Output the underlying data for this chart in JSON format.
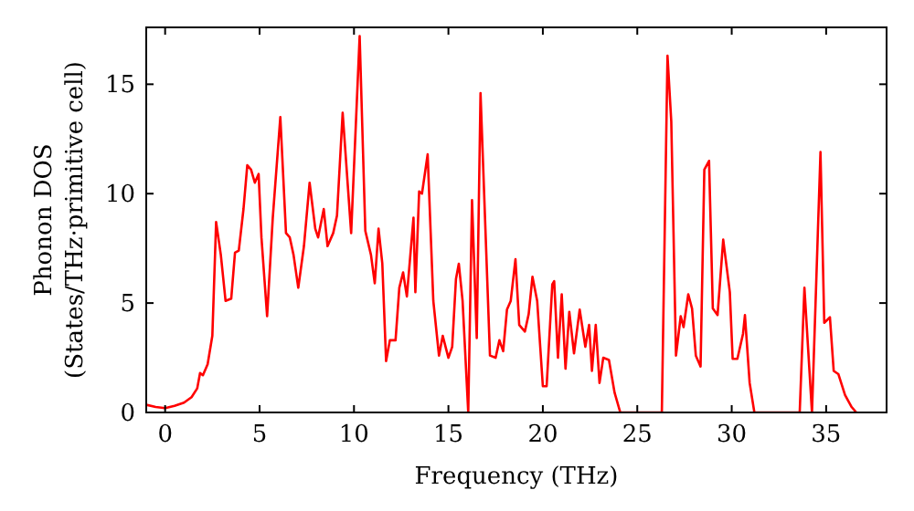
{
  "chart_data": {
    "type": "line",
    "xlabel": "Frequency (THz)",
    "ylabel": "Phonon DOS\n(States/THz·primitive cell)",
    "xlim": [
      -1,
      38.2
    ],
    "ylim": [
      0,
      17.6
    ],
    "xticks": [
      0,
      5,
      10,
      15,
      20,
      25,
      30,
      35
    ],
    "yticks": [
      0,
      5,
      10,
      15
    ],
    "grid": false,
    "marker": "none",
    "line_style": "solid",
    "series": [
      {
        "color": "#ff0000",
        "x": [
          -1,
          -0.5,
          0,
          0.5,
          1,
          1.4,
          1.7,
          1.85,
          2,
          2.25,
          2.5,
          2.7,
          2.95,
          3.2,
          3.5,
          3.7,
          3.9,
          4.15,
          4.35,
          4.55,
          4.75,
          4.95,
          5.1,
          5.4,
          5.7,
          6.1,
          6.4,
          6.6,
          6.8,
          7.05,
          7.35,
          7.65,
          7.95,
          8.1,
          8.4,
          8.6,
          8.9,
          9.1,
          9.4,
          9.85,
          10.3,
          10.6,
          10.9,
          11.1,
          11.3,
          11.5,
          11.7,
          11.9,
          12.2,
          12.4,
          12.6,
          12.8,
          13.15,
          13.25,
          13.45,
          13.6,
          13.9,
          14.2,
          14.5,
          14.7,
          15,
          15.2,
          15.4,
          15.55,
          15.75,
          16.05,
          16.25,
          16.5,
          16.7,
          17.2,
          17.5,
          17.7,
          17.9,
          18.1,
          18.3,
          18.55,
          18.75,
          19.05,
          19.25,
          19.45,
          19.7,
          20,
          20.2,
          20.5,
          20.6,
          20.8,
          21,
          21.2,
          21.4,
          21.65,
          21.95,
          22.25,
          22.45,
          22.6,
          22.8,
          23,
          23.2,
          23.5,
          23.8,
          24.1,
          26.3,
          26.6,
          26.8,
          27.05,
          27.3,
          27.45,
          27.7,
          27.9,
          28.1,
          28.35,
          28.55,
          28.8,
          29,
          29.25,
          29.55,
          29.9,
          30.05,
          30.3,
          30.6,
          30.7,
          30.95,
          31.2,
          33.6,
          33.85,
          34.25,
          34.7,
          34.9,
          35.2,
          35.4,
          35.65,
          36,
          36.35,
          36.6
        ],
        "values": [
          0.35,
          0.25,
          0.2,
          0.3,
          0.45,
          0.7,
          1.1,
          1.8,
          1.7,
          2.2,
          3.5,
          8.7,
          7.2,
          5.1,
          5.2,
          7.3,
          7.4,
          9.3,
          11.3,
          11.1,
          10.5,
          10.9,
          8,
          4.4,
          8.9,
          13.5,
          8.2,
          8,
          7.2,
          5.7,
          7.6,
          10.5,
          8.4,
          8,
          9.3,
          7.6,
          8.2,
          9,
          13.7,
          8.2,
          17.2,
          8.3,
          7.2,
          5.9,
          8.4,
          6.8,
          2.35,
          3.3,
          3.3,
          5.7,
          6.4,
          5.3,
          8.9,
          5.5,
          10.1,
          10,
          11.8,
          5.1,
          2.6,
          3.5,
          2.5,
          3,
          6.1,
          6.8,
          5.1,
          0,
          9.7,
          3.4,
          14.6,
          2.6,
          2.5,
          3.3,
          2.8,
          4.7,
          5.1,
          7,
          4,
          3.7,
          4.5,
          6.2,
          5.1,
          1.2,
          1.2,
          5.85,
          6,
          2.5,
          5.4,
          2,
          4.6,
          2.7,
          4.7,
          3,
          4,
          1.9,
          4,
          1.35,
          2.5,
          2.4,
          0.9,
          0,
          0,
          16.3,
          13.3,
          2.6,
          4.4,
          3.9,
          5.4,
          4.75,
          2.6,
          2.1,
          11.1,
          11.5,
          4.75,
          4.45,
          7.9,
          5.5,
          2.45,
          2.45,
          3.6,
          4.45,
          1.35,
          0,
          0,
          5.7,
          0,
          11.9,
          4.1,
          4.35,
          1.9,
          1.75,
          0.8,
          0.25,
          0
        ]
      }
    ]
  }
}
